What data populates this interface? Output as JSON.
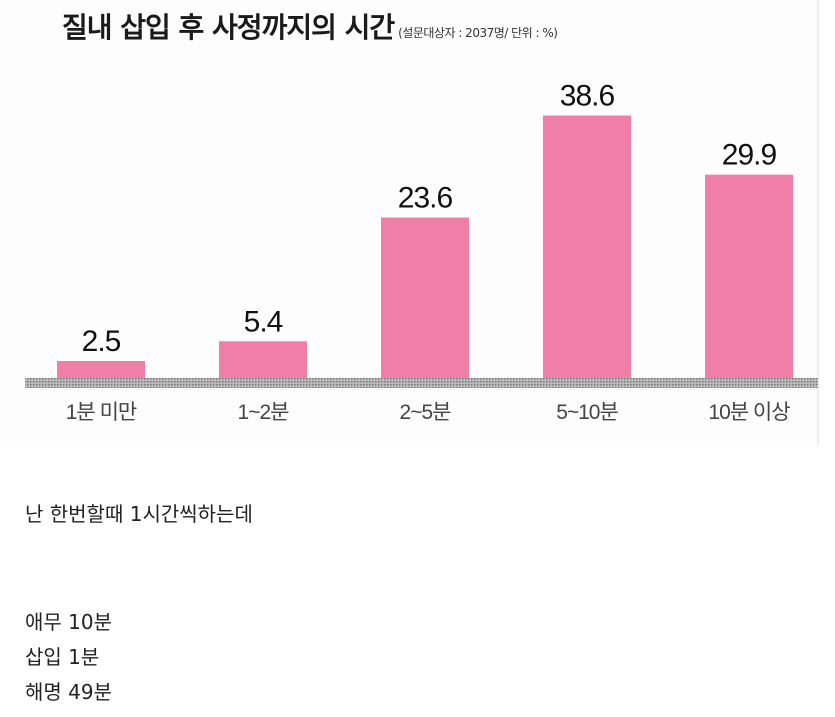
{
  "chart_data": {
    "type": "bar",
    "title": "질내 삽입 후 사정까지의 시간",
    "subtitle": "(설문대상자 : 2037명/ 단위 : %)",
    "categories": [
      "1분 미만",
      "1~2분",
      "2~5분",
      "5~10분",
      "10분 이상"
    ],
    "values": [
      2.5,
      5.4,
      23.6,
      38.6,
      29.9
    ],
    "value_labels": [
      "2.5",
      "5.4",
      "23.6",
      "38.6",
      "29.9"
    ],
    "ylim": [
      0,
      40
    ],
    "grid": false,
    "bar_color": "#f07fa8"
  },
  "post": {
    "lines": [
      "난 한번할때 1시간씩하는데",
      "애무 10분",
      "삽입 1분",
      "해명 49분"
    ]
  }
}
